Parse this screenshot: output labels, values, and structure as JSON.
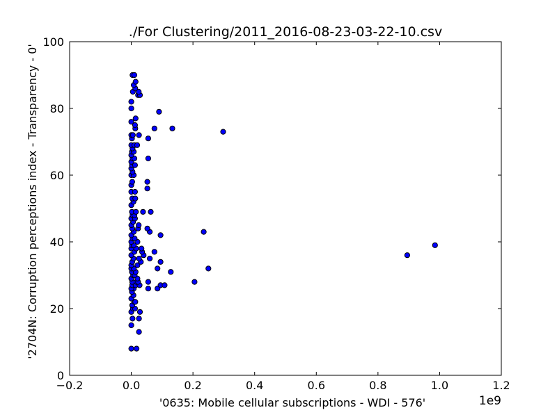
{
  "chart_data": {
    "type": "scatter",
    "title": "./For Clustering/2011_2016-08-23-03-22-10.csv",
    "xlabel": "'0635: Mobile cellular subscriptions - WDI - 576'",
    "ylabel": "'2704N: Corruption perceptions index - Transparency - 0'",
    "x_offset_label": "1e9",
    "xlim": [
      -0.2,
      1.2
    ],
    "ylim": [
      0,
      100
    ],
    "x_ticks": [
      -0.2,
      0.0,
      0.2,
      0.4,
      0.6,
      0.8,
      1.0,
      1.2
    ],
    "x_tick_labels": [
      "−0.2",
      "0.0",
      "0.2",
      "0.4",
      "0.6",
      "0.8",
      "1.0",
      "1.2"
    ],
    "y_ticks": [
      0,
      20,
      40,
      60,
      80,
      100
    ],
    "y_tick_labels": [
      "0",
      "20",
      "40",
      "60",
      "80",
      "100"
    ],
    "marker_color": "#0000ff",
    "marker_edge_color": "#000000",
    "points": [
      [
        0.0,
        8
      ],
      [
        0.017,
        8
      ],
      [
        0.025,
        13
      ],
      [
        0.0,
        15
      ],
      [
        0.004,
        17
      ],
      [
        0.025,
        17
      ],
      [
        0.028,
        19
      ],
      [
        0.0,
        19
      ],
      [
        0.005,
        20
      ],
      [
        0.012,
        20
      ],
      [
        0.003,
        21
      ],
      [
        0.01,
        22
      ],
      [
        0.013,
        22
      ],
      [
        0.0,
        23
      ],
      [
        0.007,
        24
      ],
      [
        0.002,
        25
      ],
      [
        0.008,
        26
      ],
      [
        0.0,
        26
      ],
      [
        0.003,
        27
      ],
      [
        0.014,
        27
      ],
      [
        0.027,
        27
      ],
      [
        0.055,
        26
      ],
      [
        0.085,
        26
      ],
      [
        0.095,
        27
      ],
      [
        0.108,
        27
      ],
      [
        0.003,
        28
      ],
      [
        0.017,
        28
      ],
      [
        0.022,
        28
      ],
      [
        0.055,
        28
      ],
      [
        0.205,
        28
      ],
      [
        0.0,
        29
      ],
      [
        0.02,
        29
      ],
      [
        0.006,
        30
      ],
      [
        0.011,
        30
      ],
      [
        0.002,
        31
      ],
      [
        0.014,
        31
      ],
      [
        0.128,
        31
      ],
      [
        0.0,
        32
      ],
      [
        0.008,
        32
      ],
      [
        0.085,
        32
      ],
      [
        0.25,
        32
      ],
      [
        0.0,
        33
      ],
      [
        0.02,
        33
      ],
      [
        0.003,
        34
      ],
      [
        0.031,
        34
      ],
      [
        0.095,
        34
      ],
      [
        0.007,
        35
      ],
      [
        0.025,
        35
      ],
      [
        0.06,
        35
      ],
      [
        0.0,
        36
      ],
      [
        0.04,
        36
      ],
      [
        0.895,
        36
      ],
      [
        0.01,
        37
      ],
      [
        0.035,
        37
      ],
      [
        0.075,
        37
      ],
      [
        0.0,
        38
      ],
      [
        0.016,
        38
      ],
      [
        0.033,
        38
      ],
      [
        0.002,
        39
      ],
      [
        0.008,
        39
      ],
      [
        0.985,
        39
      ],
      [
        0.0,
        40
      ],
      [
        0.02,
        40
      ],
      [
        0.004,
        41
      ],
      [
        0.011,
        41
      ],
      [
        0.0,
        42
      ],
      [
        0.095,
        42
      ],
      [
        0.008,
        43
      ],
      [
        0.06,
        43
      ],
      [
        0.235,
        43
      ],
      [
        0.003,
        44
      ],
      [
        0.022,
        44
      ],
      [
        0.052,
        44
      ],
      [
        0.0,
        45
      ],
      [
        0.024,
        45
      ],
      [
        0.006,
        46
      ],
      [
        0.0,
        47
      ],
      [
        0.012,
        47
      ],
      [
        0.004,
        48
      ],
      [
        0.01,
        48
      ],
      [
        0.002,
        49
      ],
      [
        0.015,
        49
      ],
      [
        0.038,
        49
      ],
      [
        0.063,
        49
      ],
      [
        0.0,
        51
      ],
      [
        0.007,
        52
      ],
      [
        0.003,
        53
      ],
      [
        0.013,
        53
      ],
      [
        0.0,
        55
      ],
      [
        0.012,
        55
      ],
      [
        0.052,
        56
      ],
      [
        0.0,
        57
      ],
      [
        0.003,
        58
      ],
      [
        0.052,
        58
      ],
      [
        0.0,
        60
      ],
      [
        0.008,
        60
      ],
      [
        0.004,
        61
      ],
      [
        0.0,
        62
      ],
      [
        0.002,
        63
      ],
      [
        0.012,
        63
      ],
      [
        0.0,
        64
      ],
      [
        0.004,
        65
      ],
      [
        0.01,
        65
      ],
      [
        0.055,
        65
      ],
      [
        0.0,
        66
      ],
      [
        0.002,
        67
      ],
      [
        0.008,
        67
      ],
      [
        0.004,
        68
      ],
      [
        0.0,
        69
      ],
      [
        0.01,
        69
      ],
      [
        0.019,
        69
      ],
      [
        0.002,
        71
      ],
      [
        0.055,
        71
      ],
      [
        0.0,
        72
      ],
      [
        0.005,
        72
      ],
      [
        0.025,
        72
      ],
      [
        0.298,
        73
      ],
      [
        0.013,
        74
      ],
      [
        0.075,
        74
      ],
      [
        0.133,
        74
      ],
      [
        0.012,
        75
      ],
      [
        0.0,
        76
      ],
      [
        0.014,
        77
      ],
      [
        0.09,
        79
      ],
      [
        0.0,
        80
      ],
      [
        0.0,
        82
      ],
      [
        0.022,
        84
      ],
      [
        0.028,
        84
      ],
      [
        0.005,
        85
      ],
      [
        0.024,
        85
      ],
      [
        0.013,
        86
      ],
      [
        0.008,
        87
      ],
      [
        0.014,
        88
      ],
      [
        0.004,
        90
      ],
      [
        0.01,
        90
      ]
    ]
  }
}
